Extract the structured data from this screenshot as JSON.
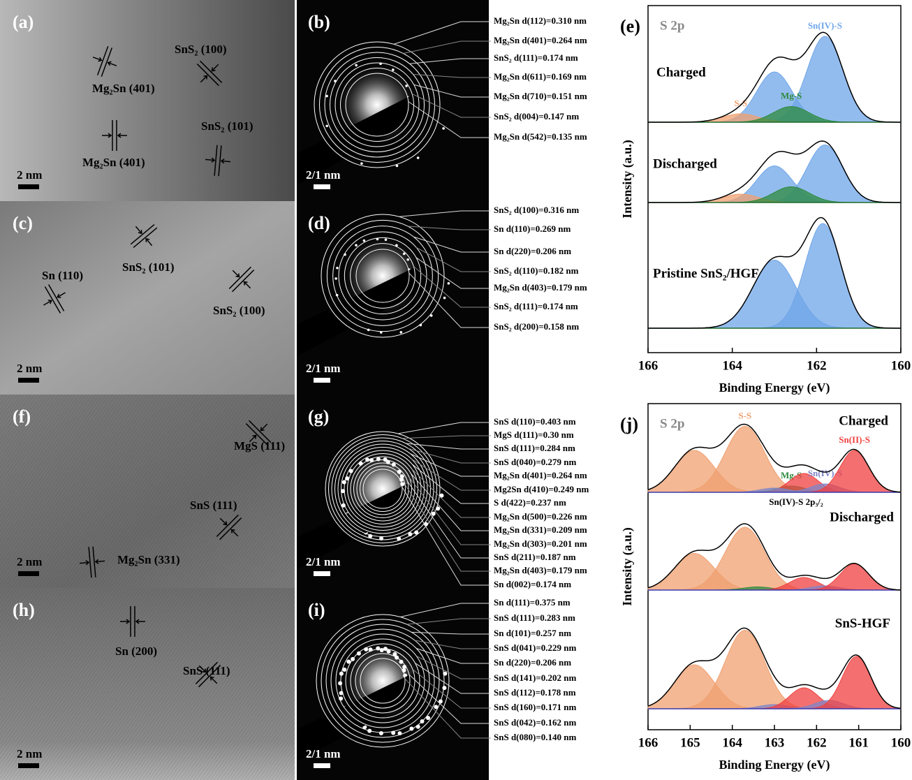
{
  "image_panels": [
    {
      "label": "(a)",
      "scale_bar": "2 nm",
      "annotations": [
        "Mg₂Sn (401)",
        "SnS₂ (100)",
        "Mg₂Sn (401)",
        "SnS₂ (101)"
      ]
    },
    {
      "label": "(c)",
      "scale_bar": "2 nm",
      "annotations": [
        "Sn (110)",
        "SnS₂ (101)",
        "SnS₂ (100)"
      ]
    },
    {
      "label": "(f)",
      "scale_bar": "2 nm",
      "annotations": [
        "MgS (111)",
        "SnS (111)",
        "Mg₂Sn (331)"
      ]
    },
    {
      "label": "(h)",
      "scale_bar": "2 nm",
      "annotations": [
        "Sn (200)",
        "SnS (111)"
      ]
    }
  ],
  "saed_panels": [
    {
      "label": "(b)",
      "scale_bar": "2/1 nm",
      "rings": [
        "Mg₂Sn d(112)=0.310 nm",
        "Mg₂Sn d(401)=0.264 nm",
        "SnS₂ d(111)=0.174 nm",
        "Mg₂Sn d(611)=0.169 nm",
        "Mg₂Sn d(710)=0.151 nm",
        "SnS₂ d(004)=0.147 nm",
        "Mg₂Sn d(542)=0.135 nm"
      ]
    },
    {
      "label": "(d)",
      "scale_bar": "2/1 nm",
      "rings": [
        "SnS₂ d(100)=0.316 nm",
        "Sn d(110)=0.269 nm",
        "Sn d(220)=0.206 nm",
        "SnS₂ d(110)=0.182 nm",
        "Mg₂Sn d(403)=0.179 nm",
        "SnS₂ d(111)=0.174 nm",
        "SnS₂ d(200)=0.158 nm"
      ]
    },
    {
      "label": "(g)",
      "scale_bar": "2/1 nm",
      "rings": [
        "SnS d(110)=0.403 nm",
        "MgS d(111)=0.30 nm",
        "SnS d(111)=0.284 nm",
        "SnS d(040)=0.279 nm",
        "Mg₂Sn d(401)=0.264 nm",
        "Mg2Sn d(410)=0.249 nm",
        "S d(422)=0.237 nm",
        "Mg₂Sn d(500)=0.226 nm",
        "Mg₂Sn d(331)=0.209 nm",
        "Mg₂Sn d(303)=0.201 nm",
        "SnS d(211)=0.187 nm",
        "Mg₂Sn d(403)=0.179 nm",
        "Sn d(002)=0.174 nm"
      ]
    },
    {
      "label": "(i)",
      "scale_bar": "2/1 nm",
      "rings": [
        "Sn d(111)=0.375 nm",
        "SnS d(111)=0.283 nm",
        "Sn d(101)=0.257 nm",
        "SnS d(041)=0.229 nm",
        "Sn d(220)=0.206 nm",
        "SnS d(141)=0.202 nm",
        "SnS d(112)=0.178 nm",
        "SnS d(160)=0.171 nm",
        "SnS d(042)=0.162 nm",
        "SnS d(080)=0.140 nm"
      ]
    }
  ],
  "chart_data": [
    {
      "type": "xps",
      "title": "(e)",
      "core_level": "S 2p",
      "xlabel": "Binding Energy (eV)",
      "ylabel": "Intensity (a.u.)",
      "xlim": [
        166,
        160
      ],
      "xticks": [
        166,
        164,
        162,
        160
      ],
      "spectra": [
        {
          "name": "Charged",
          "peaks": [
            {
              "center": 161.8,
              "height": 82,
              "width": 1.0,
              "color": "#6fa6e8",
              "label": "Sn(IV)-S"
            },
            {
              "center": 163.0,
              "height": 48,
              "width": 1.0,
              "color": "#6fa6e8"
            },
            {
              "center": 163.8,
              "height": 8,
              "width": 1.0,
              "color": "#f0a070",
              "label": "S-S"
            },
            {
              "center": 162.6,
              "height": 15,
              "width": 1.0,
              "color": "#2e8b3e",
              "label": "Mg-S"
            }
          ]
        },
        {
          "name": "Discharged",
          "peaks": [
            {
              "center": 161.8,
              "height": 55,
              "width": 1.0,
              "color": "#6fa6e8"
            },
            {
              "center": 163.0,
              "height": 35,
              "width": 1.0,
              "color": "#6fa6e8"
            },
            {
              "center": 163.8,
              "height": 8,
              "width": 1.0,
              "color": "#f0a070"
            },
            {
              "center": 162.6,
              "height": 15,
              "width": 1.0,
              "color": "#2e8b3e"
            }
          ]
        },
        {
          "name": "Pristine SnS₂/HGF",
          "peaks": [
            {
              "center": 161.85,
              "height": 100,
              "width": 1.0,
              "color": "#6fa6e8"
            },
            {
              "center": 163.0,
              "height": 65,
              "width": 1.2,
              "color": "#6fa6e8"
            }
          ]
        }
      ]
    },
    {
      "type": "xps",
      "title": "(j)",
      "core_level": "S 2p",
      "xlabel": "Binding Energy (eV)",
      "ylabel": "Intensity (a.u.)",
      "xlim": [
        166,
        160
      ],
      "xticks": [
        166,
        165,
        164,
        163,
        162,
        161,
        160
      ],
      "annotations": [
        "Sn(IV)-S 2p₃/₂"
      ],
      "spectra": [
        {
          "name": "Charged",
          "peaks": [
            {
              "center": 164.9,
              "height": 40,
              "width": 1.1,
              "color": "#f0a070"
            },
            {
              "center": 163.7,
              "height": 63,
              "width": 1.1,
              "color": "#f0a070",
              "label": "S-S"
            },
            {
              "center": 162.6,
              "height": 6,
              "width": 0.8,
              "color": "#2e8b3e",
              "label": "Mg-S"
            },
            {
              "center": 162.3,
              "height": 18,
              "width": 0.8,
              "color": "#f04040"
            },
            {
              "center": 161.8,
              "height": 8,
              "width": 0.8,
              "color": "#7f86c8",
              "label": "Sn(IV)-S"
            },
            {
              "center": 163.0,
              "height": 4,
              "width": 0.8,
              "color": "#7f86c8"
            },
            {
              "center": 161.1,
              "height": 40,
              "width": 0.8,
              "color": "#f04040",
              "label": "Sn(II)-S"
            }
          ]
        },
        {
          "name": "Discharged",
          "peaks": [
            {
              "center": 164.9,
              "height": 35,
              "width": 1.1,
              "color": "#f0a070"
            },
            {
              "center": 163.7,
              "height": 60,
              "width": 1.1,
              "color": "#f0a070"
            },
            {
              "center": 163.4,
              "height": 3,
              "width": 0.8,
              "color": "#2e8b3e"
            },
            {
              "center": 162.3,
              "height": 12,
              "width": 0.8,
              "color": "#f04040"
            },
            {
              "center": 161.8,
              "height": 4,
              "width": 0.8,
              "color": "#7f86c8"
            },
            {
              "center": 161.1,
              "height": 25,
              "width": 0.8,
              "color": "#f04040"
            }
          ]
        },
        {
          "name": "SnS-HGF",
          "peaks": [
            {
              "center": 164.9,
              "height": 42,
              "width": 1.1,
              "color": "#f0a070"
            },
            {
              "center": 163.7,
              "height": 75,
              "width": 1.1,
              "color": "#f0a070"
            },
            {
              "center": 163.0,
              "height": 4,
              "width": 0.8,
              "color": "#7f86c8"
            },
            {
              "center": 162.3,
              "height": 20,
              "width": 0.8,
              "color": "#f04040"
            },
            {
              "center": 161.7,
              "height": 8,
              "width": 0.8,
              "color": "#7f86c8"
            },
            {
              "center": 161.05,
              "height": 50,
              "width": 0.8,
              "color": "#f04040"
            }
          ]
        }
      ]
    }
  ]
}
